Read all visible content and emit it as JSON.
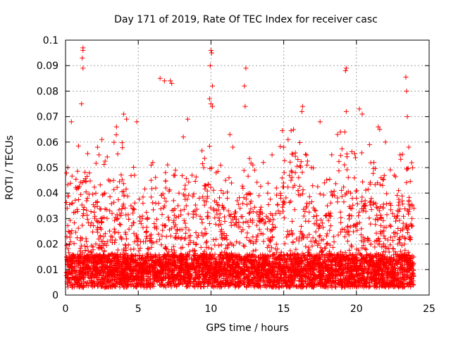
{
  "chart_data": {
    "type": "scatter",
    "title": "Day 171 of 2019, Rate Of TEC Index for receiver casc",
    "xlabel": "GPS time / hours",
    "ylabel": "ROTI / TECUs",
    "xlim": [
      0,
      25
    ],
    "ylim": [
      0,
      0.1
    ],
    "xticks": [
      0,
      5,
      10,
      15,
      20,
      25
    ],
    "yticks": [
      0,
      0.01,
      0.02,
      0.03,
      0.04,
      0.05,
      0.06,
      0.07,
      0.08,
      0.09,
      0.1
    ],
    "xtick_labels": [
      "0",
      "5",
      "10",
      "15",
      "20",
      "25"
    ],
    "ytick_labels": [
      "0",
      "0.01",
      "0.02",
      "0.03",
      "0.04",
      "0.05",
      "0.06",
      "0.07",
      "0.08",
      "0.09",
      "0.1"
    ],
    "grid": true,
    "marker": "+",
    "marker_color": "#ff0000",
    "series": [
      {
        "name": "ROTI",
        "x": [
          1.2,
          1.2,
          1.2,
          1.15,
          1.1,
          10.0,
          10.05,
          9.95,
          10.1,
          9.9,
          12.4,
          19.3,
          19.25,
          23.4,
          23.45,
          0.4,
          3.5,
          4.0,
          4.2,
          4.9,
          6.5,
          6.8,
          7.2,
          7.3,
          8.1,
          8.4,
          10.0,
          10.1,
          12.3,
          12.35,
          16.3,
          16.25,
          19.2,
          19.3,
          20.2,
          20.4,
          17.5,
          18.7,
          18.9,
          21.5,
          21.6,
          22.0,
          23.5,
          23.6,
          2.2,
          2.3,
          2.5,
          5.9,
          6.0,
          7.5,
          8.7,
          9.5,
          11.3,
          11.5,
          13.0,
          13.6,
          14.2,
          15.0,
          15.3,
          15.8,
          16.9,
          17.8,
          18.3,
          20.9,
          21.2,
          22.6,
          23.0,
          0.2,
          0.9,
          1.5,
          2.7,
          3.2,
          4.5,
          5.2,
          5.5,
          6.2,
          6.9,
          7.8,
          8.3,
          8.9,
          9.2,
          10.7,
          11.0,
          11.8,
          12.0,
          12.7,
          13.3,
          13.9,
          14.5,
          14.8,
          15.5,
          16.0,
          16.6,
          17.2,
          18.0,
          18.5,
          19.6,
          20.0,
          20.6,
          21.8,
          22.3,
          22.9,
          23.8
        ],
        "y": [
          0.097,
          0.096,
          0.089,
          0.093,
          0.075,
          0.096,
          0.095,
          0.09,
          0.082,
          0.077,
          0.089,
          0.089,
          0.088,
          0.0855,
          0.08,
          0.068,
          0.066,
          0.071,
          0.069,
          0.068,
          0.085,
          0.084,
          0.084,
          0.083,
          0.062,
          0.069,
          0.075,
          0.074,
          0.082,
          0.074,
          0.074,
          0.072,
          0.064,
          0.072,
          0.073,
          0.071,
          0.068,
          0.063,
          0.064,
          0.066,
          0.065,
          0.06,
          0.07,
          0.058,
          0.058,
          0.055,
          0.061,
          0.051,
          0.052,
          0.047,
          0.047,
          0.05,
          0.063,
          0.058,
          0.049,
          0.052,
          0.055,
          0.058,
          0.061,
          0.048,
          0.05,
          0.044,
          0.055,
          0.059,
          0.052,
          0.047,
          0.055,
          0.025,
          0.042,
          0.038,
          0.04,
          0.032,
          0.035,
          0.028,
          0.021,
          0.036,
          0.042,
          0.04,
          0.035,
          0.033,
          0.038,
          0.041,
          0.045,
          0.037,
          0.034,
          0.036,
          0.039,
          0.04,
          0.042,
          0.038,
          0.045,
          0.041,
          0.036,
          0.033,
          0.035,
          0.039,
          0.04,
          0.038,
          0.037,
          0.043,
          0.036,
          0.041,
          0.027
        ]
      }
    ]
  }
}
